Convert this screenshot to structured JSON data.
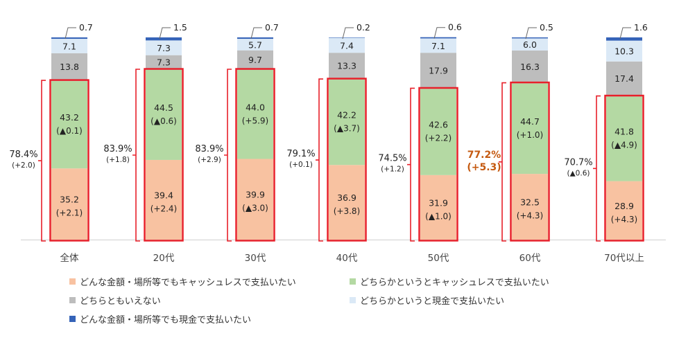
{
  "chart_data": {
    "type": "bar",
    "stacked": true,
    "percent": true,
    "categories": [
      "全体",
      "20代",
      "30代",
      "40代",
      "50代",
      "60代",
      "70代以上"
    ],
    "series": [
      {
        "name": "どんな金額・場所等でもキャッシュレスで支払いたい",
        "color": "#f8c2a1",
        "values": [
          35.2,
          39.4,
          39.9,
          36.9,
          31.9,
          32.5,
          28.9
        ],
        "changes": [
          "(+2.1)",
          "(+2.4)",
          "(▲3.0)",
          "(+3.8)",
          "(▲1.0)",
          "(+4.3)",
          "(+4.3)"
        ]
      },
      {
        "name": "どちらかというとキャッシュレスで支払いたい",
        "color": "#b4d9a3",
        "values": [
          43.2,
          44.5,
          44.0,
          42.2,
          42.6,
          44.7,
          41.8
        ],
        "changes": [
          "(▲0.1)",
          "(▲0.6)",
          "(+5.9)",
          "(▲3.7)",
          "(+2.2)",
          "(+1.0)",
          "(▲4.9)"
        ]
      },
      {
        "name": "どちらともいえない",
        "color": "#bdbdbd",
        "values": [
          13.8,
          7.3,
          9.7,
          13.3,
          17.9,
          16.3,
          17.4
        ]
      },
      {
        "name": "どちらかというと現金で支払いたい",
        "color": "#dbe9f6",
        "values": [
          7.1,
          7.3,
          5.7,
          7.4,
          7.1,
          6.0,
          10.3
        ]
      },
      {
        "name": "どんな金額・場所等でも現金で支払いたい",
        "color": "#3563b8",
        "values": [
          0.7,
          1.5,
          0.7,
          0.2,
          0.6,
          0.5,
          1.6
        ]
      }
    ],
    "totals": [
      {
        "value": "78.4%",
        "change": "(+2.0)",
        "highlight": false
      },
      {
        "value": "83.9%",
        "change": "(+1.8)",
        "highlight": false
      },
      {
        "value": "83.9%",
        "change": "(+2.9)",
        "highlight": false
      },
      {
        "value": "79.1%",
        "change": "(+0.1)",
        "highlight": false
      },
      {
        "value": "74.5%",
        "change": "(+1.2)",
        "highlight": false
      },
      {
        "value": "77.2%",
        "change": "(+5.3)",
        "highlight": true
      },
      {
        "value": "70.7%",
        "change": "(▲0.6)",
        "highlight": false
      }
    ],
    "highlight_color": "#c55a11",
    "box_color": "#e8202a",
    "ylim": [
      0,
      100
    ],
    "title": "",
    "xlabel": "",
    "ylabel": "",
    "legend_position": "bottom",
    "grid": false
  }
}
